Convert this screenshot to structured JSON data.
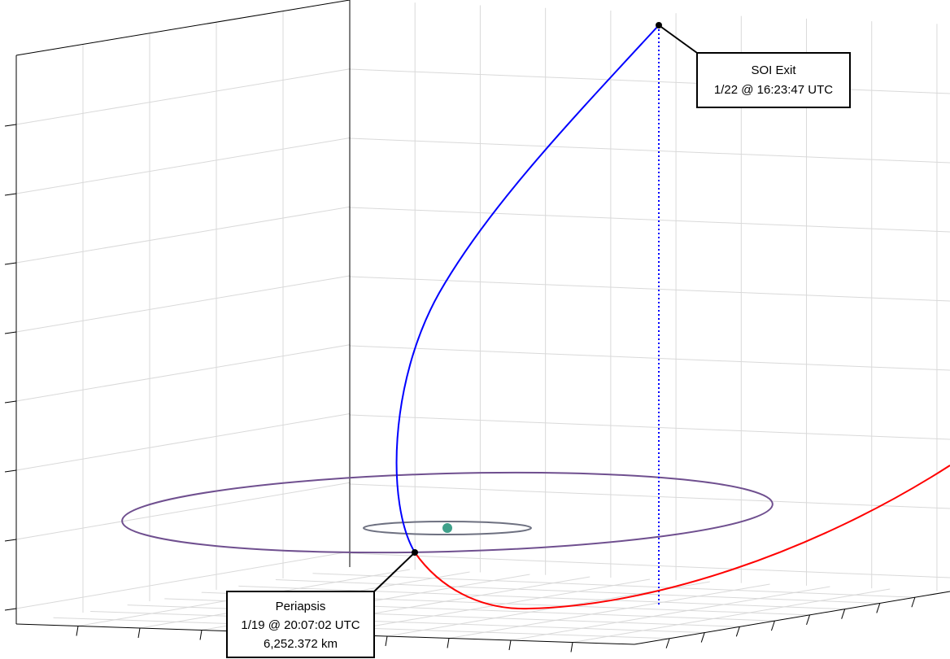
{
  "annotations": [
    {
      "lines": [
        "SOI Exit",
        "1/22 @ 16:23:47 UTC"
      ]
    },
    {
      "lines": [
        "Periapsis",
        "1/19 @ 20:07:02 UTC",
        "6,252.372 km"
      ]
    }
  ]
}
